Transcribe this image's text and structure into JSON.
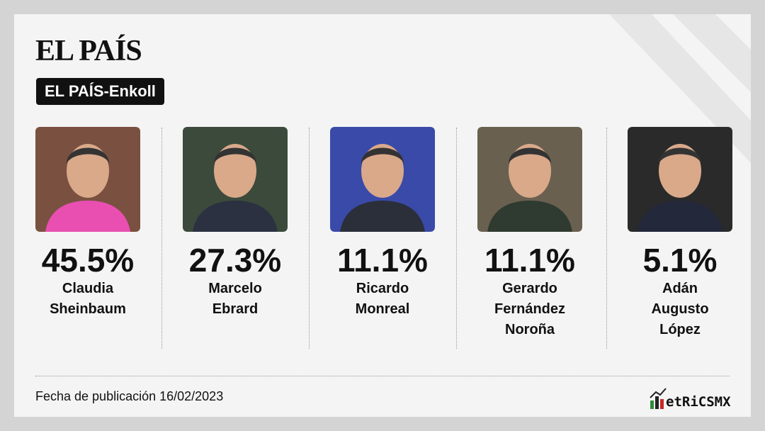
{
  "header": {
    "title": "EL PAÍS",
    "badge": "EL PAÍS-Enkoll"
  },
  "candidates": [
    {
      "percent": "45.5%",
      "name_lines": [
        "Claudia",
        "Sheinbaum"
      ]
    },
    {
      "percent": "27.3%",
      "name_lines": [
        "Marcelo",
        "Ebrard"
      ]
    },
    {
      "percent": "11.1%",
      "name_lines": [
        "Ricardo",
        "Monreal"
      ]
    },
    {
      "percent": "11.1%",
      "name_lines": [
        "Gerardo",
        "Fernández",
        "Noroña"
      ]
    },
    {
      "percent": "5.1%",
      "name_lines": [
        "Adán",
        "Augusto",
        "López"
      ]
    }
  ],
  "footer": {
    "date": "Fecha de publicación 16/02/2023",
    "logo": "etRiCSMX"
  }
}
